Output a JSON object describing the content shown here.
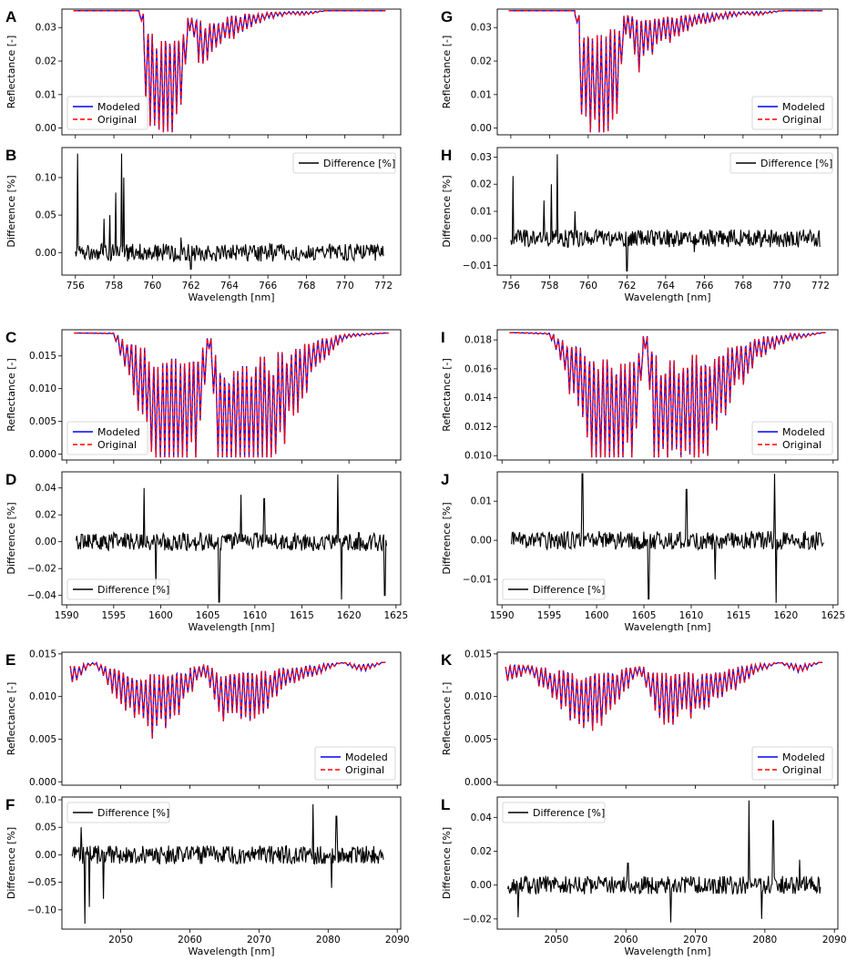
{
  "figure": {
    "colors": {
      "modeled": "#0000ff",
      "original": "#ff0000",
      "difference": "#000000",
      "axes": "#000000"
    }
  },
  "chart_data": [
    {
      "panel": "A",
      "type": "line",
      "kind": "reflectance",
      "xmin": 756,
      "xmax": 772,
      "xlim": [
        755.3,
        772.9
      ],
      "ylim": [
        -0.002,
        0.0355
      ],
      "yticks": [
        0.0,
        0.01,
        0.02,
        0.03
      ],
      "yticklabels": [
        "0.00",
        "0.01",
        "0.02",
        "0.03"
      ],
      "xticks": [
        756,
        758,
        760,
        762,
        764,
        766,
        768,
        770,
        772
      ],
      "xlabel": "",
      "ylabel": "Reflectance [-]",
      "legend": {
        "loc": "lower left",
        "entries": [
          "Modeled",
          "Original"
        ]
      },
      "series": [
        {
          "name": "Modeled",
          "style": "solid",
          "color": "#0000ff"
        },
        {
          "name": "Original",
          "style": "dashed",
          "color": "#ff0000"
        }
      ],
      "sampled": {
        "x": [
          756.0,
          759.4,
          759.6,
          760.0,
          760.5,
          761.0,
          761.5,
          762.0,
          762.5,
          763.0,
          764.0,
          765.0,
          766.0,
          767.0,
          768.0,
          769.0,
          770.0,
          771.0,
          772.0
        ],
        "y": [
          0.035,
          0.035,
          0.015,
          0.005,
          0.001,
          0.003,
          0.01,
          0.032,
          0.02,
          0.024,
          0.028,
          0.031,
          0.033,
          0.034,
          0.034,
          0.035,
          0.035,
          0.035,
          0.035
        ]
      }
    },
    {
      "panel": "B",
      "type": "line",
      "kind": "difference",
      "xmin": 756,
      "xmax": 772,
      "xlim": [
        755.3,
        772.9
      ],
      "ylim": [
        -0.03,
        0.14
      ],
      "yticks": [
        0.0,
        0.05,
        0.1
      ],
      "yticklabels": [
        "0.00",
        "0.05",
        "0.10"
      ],
      "xticks": [
        756,
        758,
        760,
        762,
        764,
        766,
        768,
        770,
        772
      ],
      "xlabel": "Wavelength [nm]",
      "ylabel": "Difference [%]",
      "legend": {
        "loc": "upper right",
        "entries": [
          "Difference [%]"
        ]
      },
      "series": [
        {
          "name": "Difference [%]",
          "style": "solid",
          "color": "#000000"
        }
      ],
      "spikes": [
        [
          756.1,
          0.132
        ],
        [
          757.5,
          0.045
        ],
        [
          757.8,
          0.05
        ],
        [
          758.1,
          0.08
        ],
        [
          758.4,
          0.132
        ],
        [
          758.5,
          0.1
        ],
        [
          762.0,
          -0.022
        ],
        [
          761.5,
          0.02
        ]
      ]
    },
    {
      "panel": "C",
      "type": "line",
      "kind": "reflectance",
      "xmin": 1591,
      "xmax": 1624,
      "xlim": [
        1589.5,
        1625.5
      ],
      "ylim": [
        -0.0009,
        0.019
      ],
      "yticks": [
        0.0,
        0.005,
        0.01,
        0.015
      ],
      "yticklabels": [
        "0.000",
        "0.005",
        "0.010",
        "0.015"
      ],
      "xticks": [
        1590,
        1595,
        1600,
        1605,
        1610,
        1615,
        1620,
        1625
      ],
      "xlabel": "",
      "ylabel": "Reflectance [-]",
      "legend": {
        "loc": "lower left",
        "entries": [
          "Modeled",
          "Original"
        ]
      },
      "series": [
        {
          "name": "Modeled",
          "style": "solid",
          "color": "#0000ff"
        },
        {
          "name": "Original",
          "style": "dashed",
          "color": "#ff0000"
        }
      ],
      "sampled": {
        "x": [
          1591,
          1595,
          1598,
          1600,
          1602,
          1604,
          1605.3,
          1606,
          1608,
          1610,
          1612,
          1614,
          1617,
          1620,
          1624
        ],
        "y": [
          0.0185,
          0.0184,
          0.008,
          0.0,
          0.0,
          0.004,
          0.0184,
          0.001,
          0.0,
          0.0,
          0.002,
          0.008,
          0.015,
          0.018,
          0.0185
        ]
      }
    },
    {
      "panel": "D",
      "type": "line",
      "kind": "difference",
      "xmin": 1591,
      "xmax": 1624,
      "xlim": [
        1589.5,
        1625.5
      ],
      "ylim": [
        -0.047,
        0.052
      ],
      "yticks": [
        -0.04,
        -0.02,
        0.0,
        0.02,
        0.04
      ],
      "yticklabels": [
        "−0.04",
        "−0.02",
        "0.00",
        "0.02",
        "0.04"
      ],
      "xticks": [
        1590,
        1595,
        1600,
        1605,
        1610,
        1615,
        1620,
        1625
      ],
      "xlabel": "Wavelength [nm]",
      "ylabel": "Difference [%]",
      "legend": {
        "loc": "lower left",
        "entries": [
          "Difference [%]"
        ]
      },
      "series": [
        {
          "name": "Difference [%]",
          "style": "solid",
          "color": "#000000"
        }
      ],
      "spikes": [
        [
          1598.2,
          0.04
        ],
        [
          1599.5,
          -0.035
        ],
        [
          1606.2,
          -0.045
        ],
        [
          1608.5,
          0.035
        ],
        [
          1611,
          0.032
        ],
        [
          1618.8,
          0.05
        ],
        [
          1619.2,
          -0.043
        ],
        [
          1623.8,
          -0.04
        ]
      ]
    },
    {
      "panel": "E",
      "type": "line",
      "kind": "reflectance",
      "xmin": 2043,
      "xmax": 2088,
      "xlim": [
        2041.5,
        2090.5
      ],
      "ylim": [
        -0.0004,
        0.0152
      ],
      "yticks": [
        0.0,
        0.005,
        0.01,
        0.015
      ],
      "yticklabels": [
        "0.000",
        "0.005",
        "0.010",
        "0.015"
      ],
      "xticks": [
        2050,
        2060,
        2070,
        2080,
        2090
      ],
      "xlabel": "",
      "ylabel": "Reflectance [-]",
      "legend": {
        "loc": "lower right",
        "entries": [
          "Modeled",
          "Original"
        ]
      },
      "series": [
        {
          "name": "Modeled",
          "style": "solid",
          "color": "#0000ff"
        },
        {
          "name": "Original",
          "style": "dashed",
          "color": "#ff0000"
        }
      ],
      "sampled": {
        "x": [
          2043,
          2046,
          2050,
          2055,
          2058,
          2062,
          2065,
          2070,
          2075,
          2079,
          2082,
          2085,
          2088
        ],
        "y": [
          0.012,
          0.014,
          0.01,
          0.007,
          0.009,
          0.013,
          0.008,
          0.009,
          0.012,
          0.013,
          0.014,
          0.013,
          0.014
        ]
      }
    },
    {
      "panel": "F",
      "type": "line",
      "kind": "difference",
      "xmin": 2043,
      "xmax": 2088,
      "xlim": [
        2041.5,
        2090.5
      ],
      "ylim": [
        -0.135,
        0.105
      ],
      "yticks": [
        -0.1,
        -0.05,
        0.0,
        0.05,
        0.1
      ],
      "yticklabels": [
        "−0.10",
        "−0.05",
        "0.00",
        "0.05",
        "0.10"
      ],
      "xticks": [
        2050,
        2060,
        2070,
        2080,
        2090
      ],
      "xlabel": "Wavelength [nm]",
      "ylabel": "Difference [%]",
      "legend": {
        "loc": "upper left",
        "entries": [
          "Difference [%]"
        ]
      },
      "series": [
        {
          "name": "Difference [%]",
          "style": "solid",
          "color": "#000000"
        }
      ],
      "spikes": [
        [
          2044.8,
          -0.125
        ],
        [
          2045.5,
          -0.095
        ],
        [
          2044.3,
          0.05
        ],
        [
          2047.5,
          -0.08
        ],
        [
          2077.8,
          0.092
        ],
        [
          2081.2,
          0.07
        ],
        [
          2080.5,
          -0.06
        ]
      ]
    },
    {
      "panel": "G",
      "type": "line",
      "kind": "reflectance",
      "xmin": 756,
      "xmax": 772,
      "xlim": [
        755.3,
        772.9
      ],
      "ylim": [
        -0.002,
        0.0355
      ],
      "yticks": [
        0.0,
        0.01,
        0.02,
        0.03
      ],
      "yticklabels": [
        "0.00",
        "0.01",
        "0.02",
        "0.03"
      ],
      "xticks": [
        756,
        758,
        760,
        762,
        764,
        766,
        768,
        770,
        772
      ],
      "xlabel": "",
      "ylabel": "Reflectance [-]",
      "legend": {
        "loc": "lower right",
        "entries": [
          "Modeled",
          "Original"
        ]
      },
      "series": [
        {
          "name": "Modeled",
          "style": "solid",
          "color": "#0000ff"
        },
        {
          "name": "Original",
          "style": "dashed",
          "color": "#ff0000"
        }
      ],
      "sampled": {
        "x": [
          756.0,
          759.4,
          759.6,
          760.0,
          760.5,
          761.0,
          761.5,
          762.0,
          762.5,
          763.0,
          764.0,
          765.0,
          766.0,
          767.0,
          768.0,
          769.0,
          770.0,
          771.0,
          772.0
        ],
        "y": [
          0.035,
          0.035,
          0.012,
          0.004,
          0.002,
          0.004,
          0.012,
          0.032,
          0.02,
          0.024,
          0.027,
          0.03,
          0.032,
          0.033,
          0.034,
          0.034,
          0.035,
          0.035,
          0.035
        ]
      }
    },
    {
      "panel": "H",
      "type": "line",
      "kind": "difference",
      "xmin": 756,
      "xmax": 772,
      "xlim": [
        755.3,
        772.9
      ],
      "ylim": [
        -0.0135,
        0.0335
      ],
      "yticks": [
        -0.01,
        0.0,
        0.01,
        0.02,
        0.03
      ],
      "yticklabels": [
        "−0.01",
        "0.00",
        "0.01",
        "0.02",
        "0.03"
      ],
      "xticks": [
        756,
        758,
        760,
        762,
        764,
        766,
        768,
        770,
        772
      ],
      "xlabel": "Wavelength [nm]",
      "ylabel": "Difference [%]",
      "legend": {
        "loc": "upper right",
        "entries": [
          "Difference [%]"
        ]
      },
      "series": [
        {
          "name": "Difference [%]",
          "style": "solid",
          "color": "#000000"
        }
      ],
      "spikes": [
        [
          756.1,
          0.023
        ],
        [
          757.7,
          0.014
        ],
        [
          758.1,
          0.02
        ],
        [
          758.4,
          0.031
        ],
        [
          759.3,
          0.01
        ],
        [
          762.0,
          -0.012
        ],
        [
          765.5,
          -0.005
        ]
      ]
    },
    {
      "panel": "I",
      "type": "line",
      "kind": "reflectance",
      "xmin": 1591,
      "xmax": 1624,
      "xlim": [
        1589.5,
        1625.5
      ],
      "ylim": [
        0.0097,
        0.0187
      ],
      "yticks": [
        0.01,
        0.012,
        0.014,
        0.016,
        0.018
      ],
      "yticklabels": [
        "0.010",
        "0.012",
        "0.014",
        "0.016",
        "0.018"
      ],
      "xticks": [
        1590,
        1595,
        1600,
        1605,
        1610,
        1615,
        1620,
        1625
      ],
      "xlabel": "",
      "ylabel": "Reflectance [-]",
      "legend": {
        "loc": "lower right",
        "entries": [
          "Modeled",
          "Original"
        ]
      },
      "series": [
        {
          "name": "Modeled",
          "style": "solid",
          "color": "#0000ff"
        },
        {
          "name": "Original",
          "style": "dashed",
          "color": "#ff0000"
        }
      ],
      "sampled": {
        "x": [
          1591,
          1595,
          1598,
          1600,
          1602,
          1604,
          1605.3,
          1606,
          1608,
          1610,
          1612,
          1614,
          1617,
          1620,
          1624
        ],
        "y": [
          0.0185,
          0.0184,
          0.014,
          0.0105,
          0.0102,
          0.012,
          0.0184,
          0.0112,
          0.0104,
          0.0106,
          0.012,
          0.0145,
          0.017,
          0.018,
          0.0185
        ]
      }
    },
    {
      "panel": "J",
      "type": "line",
      "kind": "difference",
      "xmin": 1591,
      "xmax": 1624,
      "xlim": [
        1589.5,
        1625.5
      ],
      "ylim": [
        -0.0165,
        0.0175
      ],
      "yticks": [
        -0.01,
        0.0,
        0.01
      ],
      "yticklabels": [
        "−0.01",
        "0.00",
        "0.01"
      ],
      "xticks": [
        1590,
        1595,
        1600,
        1605,
        1610,
        1615,
        1620,
        1625
      ],
      "xlabel": "Wavelength [nm]",
      "ylabel": "Difference [%]",
      "legend": {
        "loc": "lower left",
        "entries": [
          "Difference [%]"
        ]
      },
      "series": [
        {
          "name": "Difference [%]",
          "style": "solid",
          "color": "#000000"
        }
      ],
      "spikes": [
        [
          1598.5,
          0.017
        ],
        [
          1605.5,
          -0.015
        ],
        [
          1609.5,
          0.013
        ],
        [
          1618.8,
          0.017
        ],
        [
          1619.0,
          -0.016
        ],
        [
          1612.5,
          -0.01
        ]
      ]
    },
    {
      "panel": "K",
      "type": "line",
      "kind": "reflectance",
      "xmin": 2043,
      "xmax": 2088,
      "xlim": [
        2041.5,
        2090.5
      ],
      "ylim": [
        -0.0004,
        0.0152
      ],
      "yticks": [
        0.0,
        0.005,
        0.01,
        0.015
      ],
      "yticklabels": [
        "0.000",
        "0.005",
        "0.010",
        "0.015"
      ],
      "xticks": [
        2050,
        2060,
        2070,
        2080,
        2090
      ],
      "xlabel": "",
      "ylabel": "Reflectance [-]",
      "legend": {
        "loc": "lower right",
        "entries": [
          "Modeled",
          "Original"
        ]
      },
      "series": [
        {
          "name": "Modeled",
          "style": "solid",
          "color": "#0000ff"
        },
        {
          "name": "Original",
          "style": "dashed",
          "color": "#ff0000"
        }
      ],
      "sampled": {
        "x": [
          2043,
          2046,
          2050,
          2055,
          2058,
          2062,
          2065,
          2070,
          2075,
          2079,
          2082,
          2085,
          2088
        ],
        "y": [
          0.012,
          0.013,
          0.01,
          0.007,
          0.009,
          0.013,
          0.008,
          0.009,
          0.011,
          0.013,
          0.014,
          0.013,
          0.014
        ]
      }
    },
    {
      "panel": "L",
      "type": "line",
      "kind": "difference",
      "xmin": 2043,
      "xmax": 2088,
      "xlim": [
        2041.5,
        2090.5
      ],
      "ylim": [
        -0.026,
        0.052
      ],
      "yticks": [
        -0.02,
        0.0,
        0.02,
        0.04
      ],
      "yticklabels": [
        "−0.02",
        "0.00",
        "0.02",
        "0.04"
      ],
      "xticks": [
        2050,
        2060,
        2070,
        2080,
        2090
      ],
      "xlabel": "Wavelength [nm]",
      "ylabel": "Difference [%]",
      "legend": {
        "loc": "upper left",
        "entries": [
          "Difference [%]"
        ]
      },
      "series": [
        {
          "name": "Difference [%]",
          "style": "solid",
          "color": "#000000"
        }
      ],
      "spikes": [
        [
          2077.7,
          0.05
        ],
        [
          2081.2,
          0.038
        ],
        [
          2044.5,
          -0.019
        ],
        [
          2060.3,
          0.013
        ],
        [
          2066.5,
          -0.022
        ],
        [
          2079.5,
          -0.02
        ],
        [
          2085,
          0.015
        ]
      ]
    }
  ]
}
